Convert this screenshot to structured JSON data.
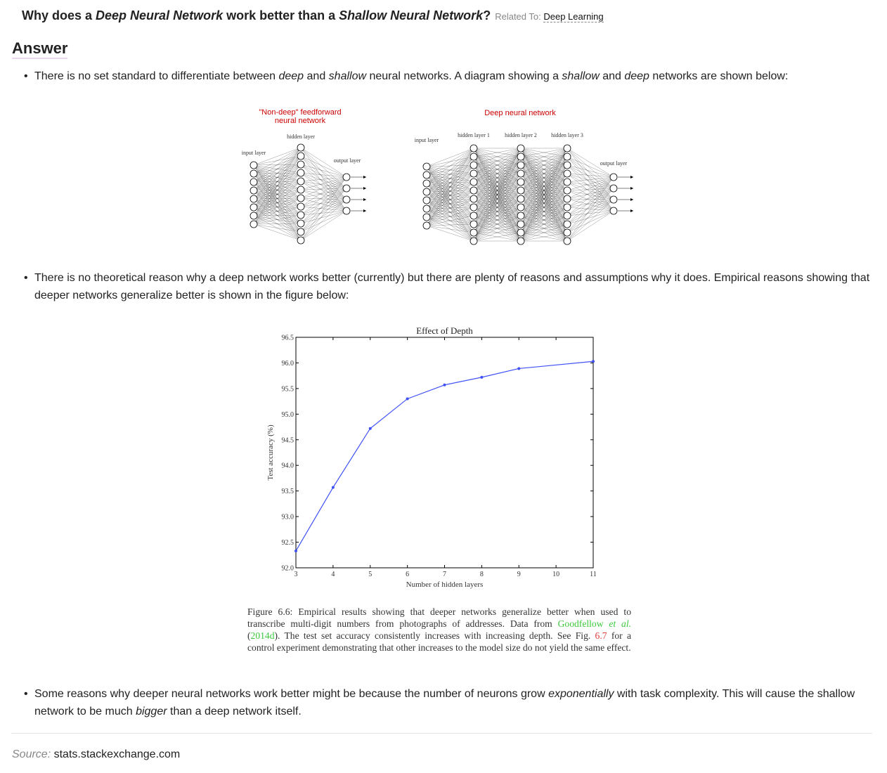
{
  "header": {
    "title": [
      {
        "text": "Why does a "
      },
      {
        "text": "Deep Neural Network",
        "italic": true
      },
      {
        "text": " work better than a "
      },
      {
        "text": "Shallow Neural Network",
        "italic": true
      },
      {
        "text": "?"
      }
    ],
    "related_label": "Related To:",
    "related_link": "Deep Learning"
  },
  "answer_heading": "Answer",
  "bullets": [
    [
      {
        "text": "There is no set standard to differentiate between "
      },
      {
        "text": "deep",
        "italic": true
      },
      {
        "text": " and "
      },
      {
        "text": "shallow",
        "italic": true
      },
      {
        "text": " neural networks. A diagram showing a "
      },
      {
        "text": "shallow",
        "italic": true
      },
      {
        "text": " and "
      },
      {
        "text": "deep",
        "italic": true
      },
      {
        "text": " networks are shown below:"
      }
    ],
    [
      {
        "text": "There is no theoretical reason why a deep network works better (currently) but there are plenty of reasons and assumptions why it does. Empirical reasons showing that deeper networks generalize better is shown in the figure below:"
      }
    ],
    [
      {
        "text": "Some reasons why deeper neural networks work better might be because the number of neurons grow "
      },
      {
        "text": "exponentially",
        "italic": true
      },
      {
        "text": " with task complexity. This will cause the shallow network to be much "
      },
      {
        "text": "bigger",
        "italic": true
      },
      {
        "text": " than a deep network itself."
      }
    ]
  ],
  "diagram": {
    "shallow": {
      "title_line1": "\"Non-deep\" feedforward",
      "title_line2": "neural network",
      "input_label": "input layer",
      "hidden_label": "hidden layer",
      "output_label": "output layer"
    },
    "deep": {
      "title": "Deep neural network",
      "input_label": "input layer",
      "hidden_labels": [
        "hidden layer 1",
        "hidden layer 2",
        "hidden layer 3"
      ],
      "output_label": "output layer"
    }
  },
  "chart_data": {
    "type": "line",
    "title": "Effect of Depth",
    "x_label": "Number of hidden layers",
    "y_label": "Test accuracy (%)",
    "x": [
      3,
      4,
      5,
      6,
      7,
      8,
      9,
      11
    ],
    "values": [
      92.33,
      93.57,
      94.72,
      95.3,
      95.57,
      95.72,
      95.89,
      96.03
    ],
    "color": "#3f51f5",
    "xlim": [
      3,
      11
    ],
    "xticks": [
      3,
      4,
      5,
      6,
      7,
      8,
      9,
      10,
      11
    ],
    "ylim": [
      92,
      96.5
    ],
    "yticks": [
      {
        "value": 92,
        "label": "92.0"
      },
      92.5,
      {
        "value": 93,
        "label": "93.0"
      },
      93.5,
      {
        "value": 94,
        "label": "94.0"
      },
      94.5,
      {
        "value": 95,
        "label": "95.0"
      },
      95.5,
      {
        "value": 96,
        "label": "96.0"
      },
      96.5
    ]
  },
  "caption": [
    {
      "text": "Figure 6.6: Empirical results showing that deeper networks generalize better when used to transcribe multi-digit numbers from photographs of addresses. Data from "
    },
    {
      "text": "Goodfellow",
      "color": "#3cc83c"
    },
    {
      "text": " "
    },
    {
      "text": "et al.",
      "color": "#3cc83c",
      "italic": true
    },
    {
      "text": " ("
    },
    {
      "text": "2014d",
      "color": "#3cc83c"
    },
    {
      "text": "). The test set accuracy consistently increases with increasing depth. See Fig. "
    },
    {
      "text": "6.7",
      "color": "#e03c3c"
    },
    {
      "text": " for a control experiment demonstrating that other increases to the model size do not yield the same effect."
    }
  ],
  "source": {
    "label": "Source:",
    "text": "stats.stackexchange.com"
  }
}
